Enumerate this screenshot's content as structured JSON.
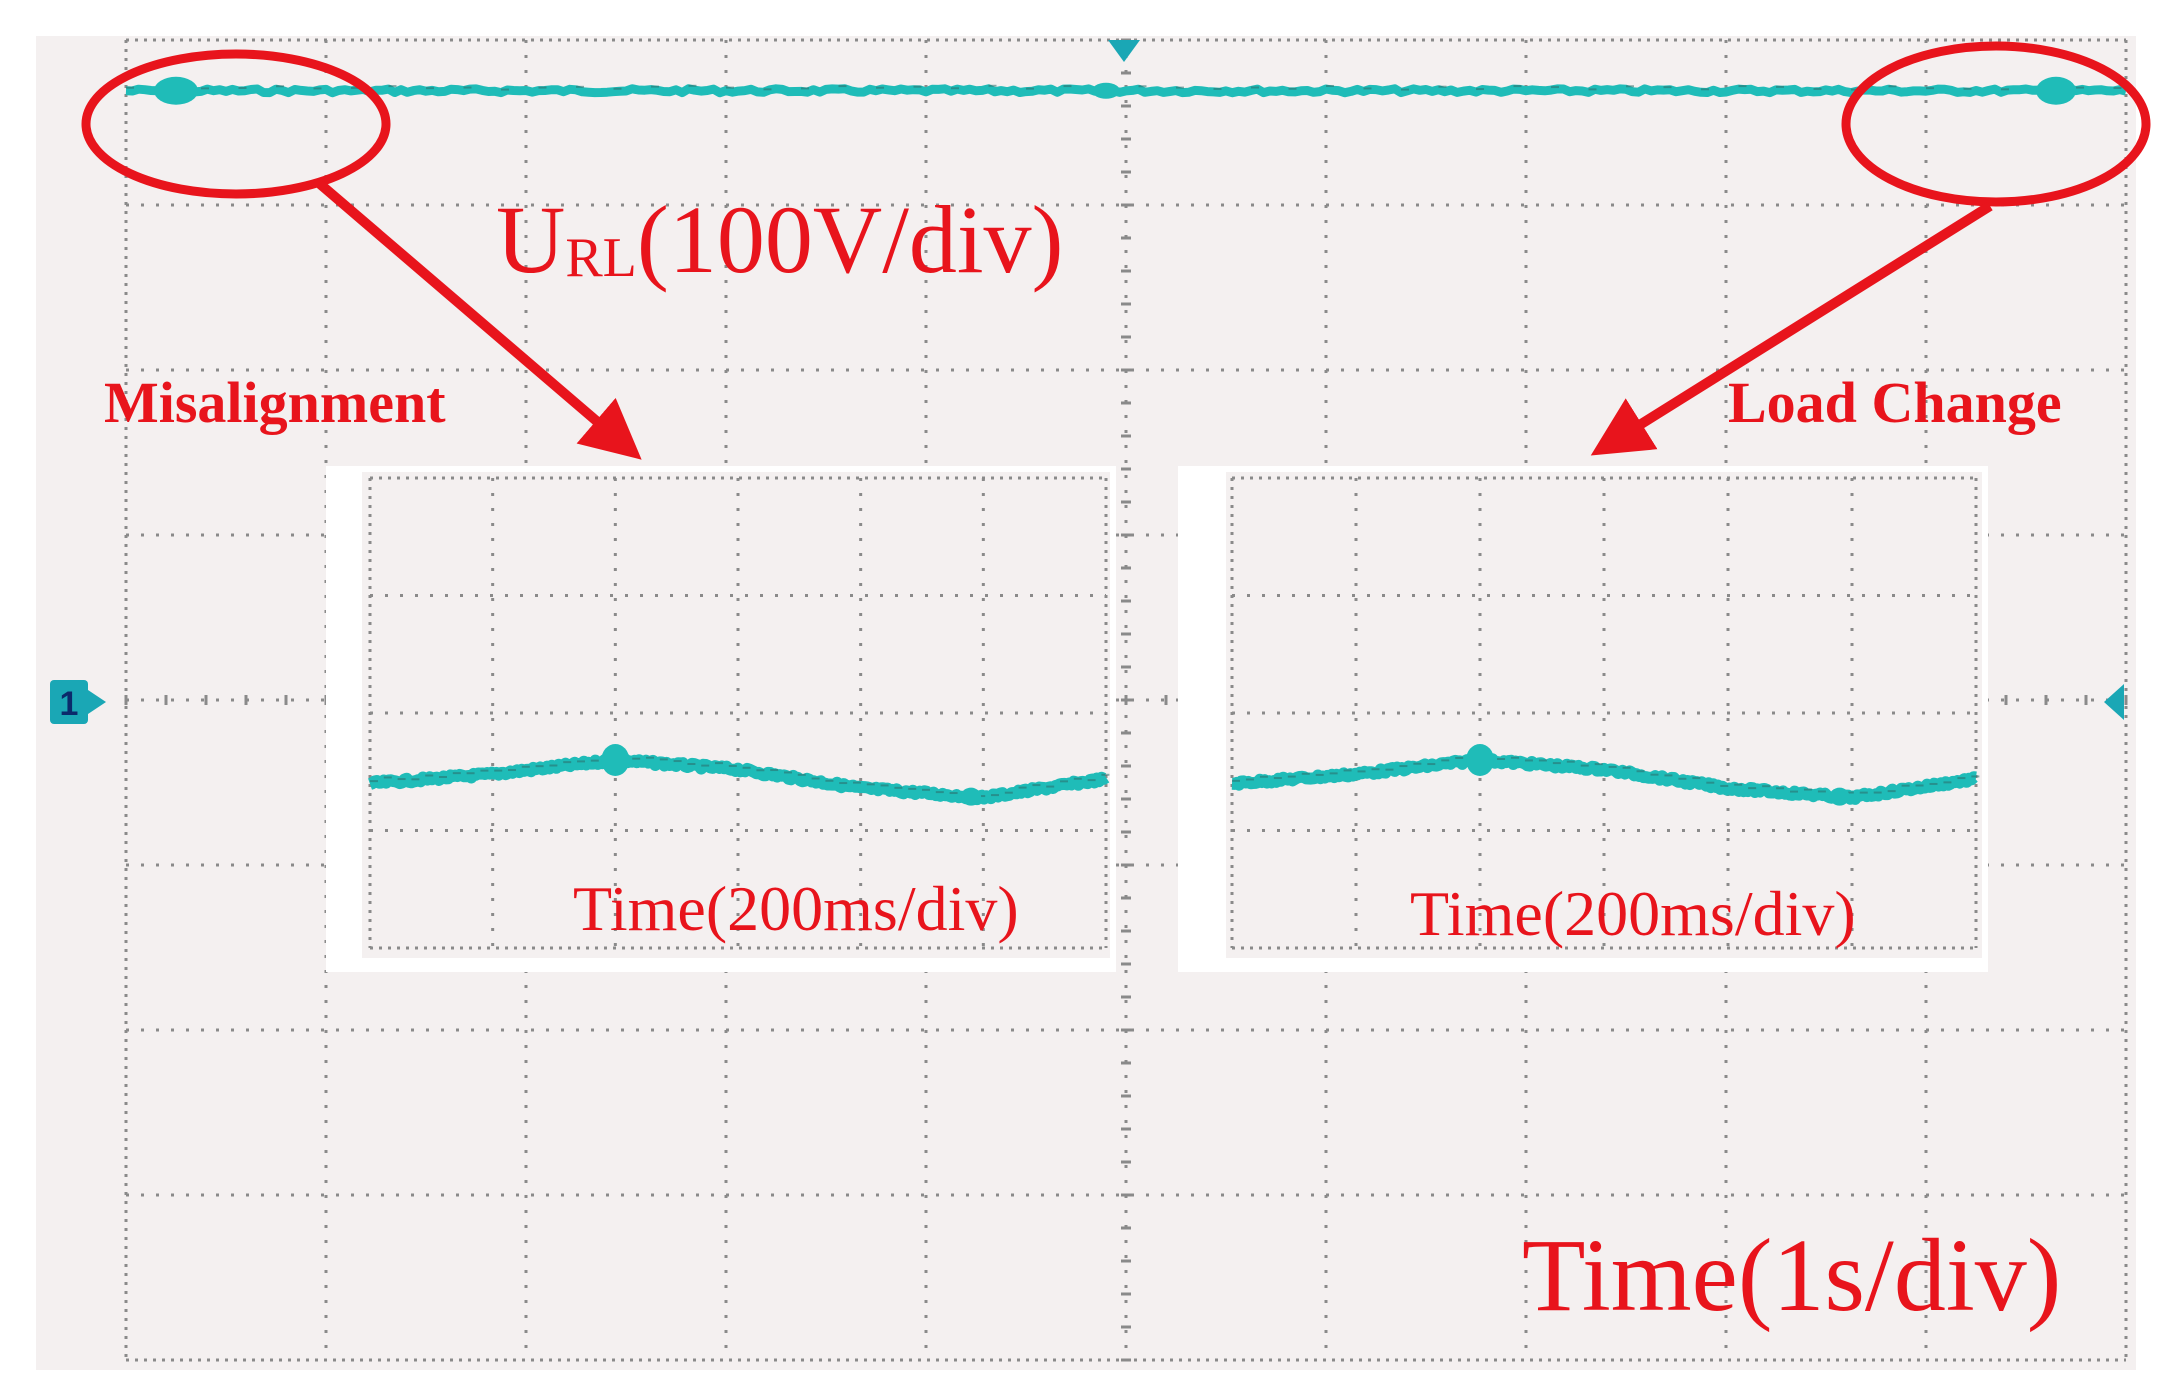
{
  "colors": {
    "screen_bg": "#f4f0f0",
    "grid": "#8a8a8a",
    "trace": "#1fbcb8",
    "annotation": "#e8141c",
    "channel_marker": "#1aa7b5"
  },
  "channel": {
    "marker_label": "1"
  },
  "main_scope": {
    "voltage_label_main": "U",
    "voltage_label_sub": "RL",
    "voltage_label_scale": "(100V/div)",
    "time_label": "Time(1s/div)",
    "divisions_x": 10,
    "divisions_y": 8
  },
  "annotations": {
    "misalignment": "Misalignment",
    "load_change": "Load Change"
  },
  "insets": [
    {
      "time_label": "Time(200ms/div)"
    },
    {
      "time_label": "Time(200ms/div)"
    }
  ],
  "chart_data": {
    "type": "line",
    "title": "",
    "xlabel": "Time(1s/div)",
    "ylabel": "U_RL(100V/div)",
    "grid": true,
    "series": [
      {
        "x_div": [
          0,
          0.5,
          1,
          2,
          3,
          4,
          5,
          6,
          7,
          8,
          9,
          9.5,
          10
        ],
        "y_div": [
          3.45,
          3.45,
          3.43,
          3.42,
          3.4,
          3.38,
          3.36,
          3.38,
          3.4,
          3.42,
          3.44,
          3.45,
          3.46
        ]
      }
    ]
  }
}
